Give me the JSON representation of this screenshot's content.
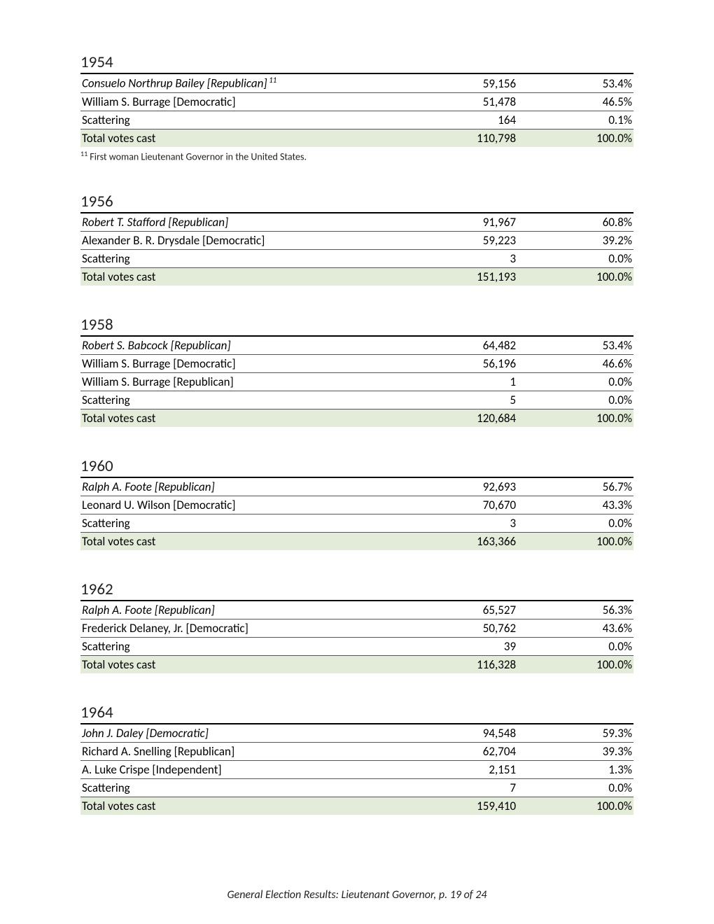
{
  "footer": "General Election Results: Lieutenant Governor, p. 19 of 24",
  "total_label": "Total votes cast",
  "colors": {
    "total_row_bg": "#e3ecd8",
    "rule": "#000000",
    "row_border": "#555555",
    "text": "#222222",
    "bg": "#ffffff"
  },
  "blocks": [
    {
      "year": "1954",
      "rows": [
        {
          "name": "Consuelo Northrup Bailey [Republican]",
          "sup": "11",
          "votes": "59,156",
          "pct": "53.4%",
          "winner": true
        },
        {
          "name": "William S. Burrage  [Democratic]",
          "votes": "51,478",
          "pct": "46.5%"
        },
        {
          "name": "Scattering",
          "votes": "164",
          "pct": "0.1%"
        }
      ],
      "total": {
        "votes": "110,798",
        "pct": "100.0%"
      },
      "footnote": {
        "sup": "11",
        "text": " First woman Lieutenant Governor in the United States."
      }
    },
    {
      "year": "1956",
      "rows": [
        {
          "name": "Robert T. Stafford [Republican]",
          "votes": "91,967",
          "pct": "60.8%",
          "winner": true
        },
        {
          "name": "Alexander B. R. Drysdale  [Democratic]",
          "votes": "59,223",
          "pct": "39.2%"
        },
        {
          "name": "Scattering",
          "votes": "3",
          "pct": "0.0%"
        }
      ],
      "total": {
        "votes": "151,193",
        "pct": "100.0%"
      }
    },
    {
      "year": "1958",
      "rows": [
        {
          "name": "Robert S. Babcock [Republican]",
          "votes": "64,482",
          "pct": "53.4%",
          "winner": true
        },
        {
          "name": "William S. Burrage [Democratic]",
          "votes": "56,196",
          "pct": "46.6%"
        },
        {
          "name": "William S. Burrage [Republican]",
          "votes": "1",
          "pct": "0.0%"
        },
        {
          "name": "Scattering",
          "votes": "5",
          "pct": "0.0%"
        }
      ],
      "total": {
        "votes": "120,684",
        "pct": "100.0%"
      }
    },
    {
      "year": "1960",
      "rows": [
        {
          "name": "Ralph A. Foote [Republican]",
          "votes": "92,693",
          "pct": "56.7%",
          "winner": true
        },
        {
          "name": "Leonard U. Wilson  [Democratic]",
          "votes": "70,670",
          "pct": "43.3%"
        },
        {
          "name": "Scattering",
          "votes": "3",
          "pct": "0.0%"
        }
      ],
      "total": {
        "votes": "163,366",
        "pct": "100.0%"
      }
    },
    {
      "year": "1962",
      "rows": [
        {
          "name": "Ralph A. Foote [Republican]",
          "votes": "65,527",
          "pct": "56.3%",
          "winner": true
        },
        {
          "name": "Frederick Delaney, Jr. [Democratic]",
          "votes": "50,762",
          "pct": "43.6%"
        },
        {
          "name": "Scattering",
          "votes": "39",
          "pct": "0.0%"
        }
      ],
      "total": {
        "votes": "116,328",
        "pct": "100.0%"
      }
    },
    {
      "year": "1964",
      "rows": [
        {
          "name": "John J. Daley  [Democratic]",
          "votes": "94,548",
          "pct": "59.3%",
          "winner": true
        },
        {
          "name": "Richard A. Snelling [Republican]",
          "votes": "62,704",
          "pct": "39.3%"
        },
        {
          "name": "A. Luke Crispe [Independent]",
          "votes": "2,151",
          "pct": "1.3%"
        },
        {
          "name": "Scattering",
          "votes": "7",
          "pct": "0.0%"
        }
      ],
      "total": {
        "votes": "159,410",
        "pct": "100.0%"
      }
    }
  ]
}
